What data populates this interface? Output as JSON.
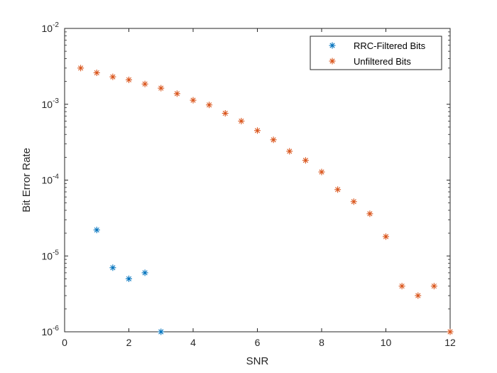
{
  "chart_data": {
    "type": "scatter",
    "title": "",
    "xlabel": "SNR",
    "ylabel": "Bit Error Rate",
    "xlim": [
      0,
      12
    ],
    "ylim": [
      1e-06,
      0.01
    ],
    "yscale": "log",
    "grid": false,
    "legend_position": "top-right",
    "x_ticks": [
      0,
      2,
      4,
      6,
      8,
      10,
      12
    ],
    "x_tick_labels": [
      "0",
      "2",
      "4",
      "6",
      "8",
      "10",
      "12"
    ],
    "y_ticks": [
      {
        "value": 1e-06,
        "base": "10",
        "exp": "-6"
      },
      {
        "value": 1e-05,
        "base": "10",
        "exp": "-5"
      },
      {
        "value": 0.0001,
        "base": "10",
        "exp": "-4"
      },
      {
        "value": 0.001,
        "base": "10",
        "exp": "-3"
      },
      {
        "value": 0.01,
        "base": "10",
        "exp": "-2"
      }
    ],
    "series": [
      {
        "name": "RRC-Filtered Bits",
        "color": "#0072BD",
        "marker": "asterisk",
        "x": [
          1,
          1.5,
          2,
          2.5,
          3
        ],
        "y": [
          2.2e-05,
          7e-06,
          5e-06,
          6e-06,
          1e-06
        ]
      },
      {
        "name": "Unfiltered Bits",
        "color": "#D95319",
        "marker": "asterisk",
        "x": [
          0.5,
          1,
          1.5,
          2,
          2.5,
          3,
          3.5,
          4,
          4.5,
          5,
          5.5,
          6,
          6.5,
          7,
          7.5,
          8,
          8.5,
          9,
          9.5,
          10,
          10.5,
          11,
          11.5,
          12
        ],
        "y": [
          0.003,
          0.0026,
          0.0023,
          0.0021,
          0.00185,
          0.00163,
          0.00138,
          0.00113,
          0.00098,
          0.00076,
          0.0006,
          0.00045,
          0.00034,
          0.00024,
          0.000182,
          0.000128,
          7.5e-05,
          5.2e-05,
          3.6e-05,
          1.8e-05,
          4e-06,
          3e-06,
          4e-06,
          1e-06
        ]
      }
    ]
  }
}
